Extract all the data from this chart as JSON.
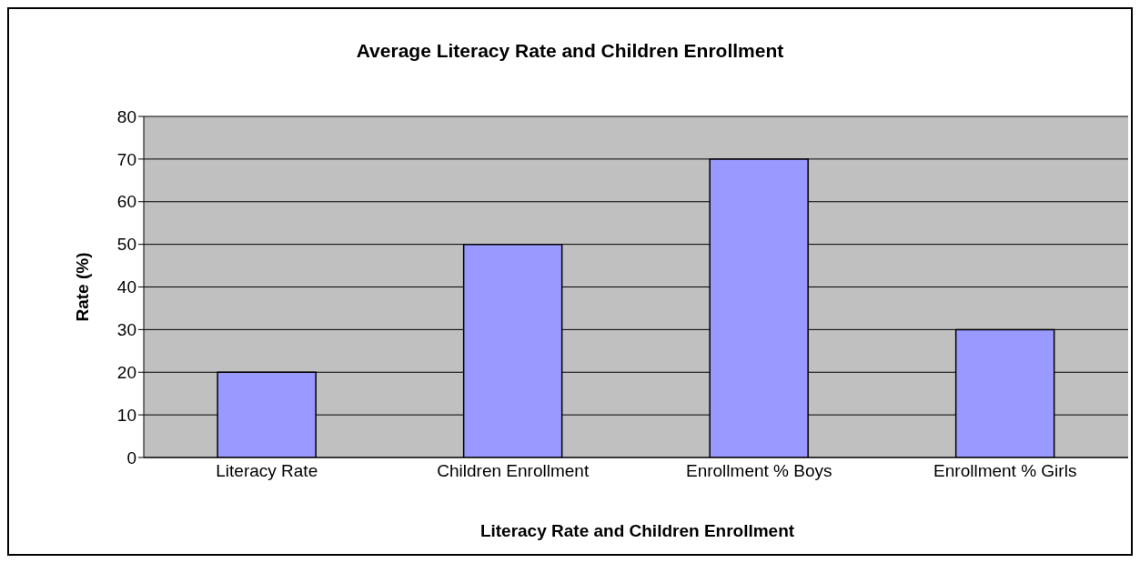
{
  "chart_data": {
    "type": "bar",
    "title": "Average Literacy Rate and Children Enrollment",
    "xlabel": "Literacy Rate and Children Enrollment",
    "ylabel": "Rate (%)",
    "categories": [
      "Literacy Rate",
      "Children Enrollment",
      "Enrollment % Boys",
      "Enrollment % Girls"
    ],
    "values": [
      20,
      50,
      70,
      30
    ],
    "color": "#9999ff",
    "ylim": [
      0,
      80
    ],
    "yticks": [
      0,
      10,
      20,
      30,
      40,
      50,
      60,
      70,
      80
    ],
    "grid": "y",
    "legend": false
  }
}
